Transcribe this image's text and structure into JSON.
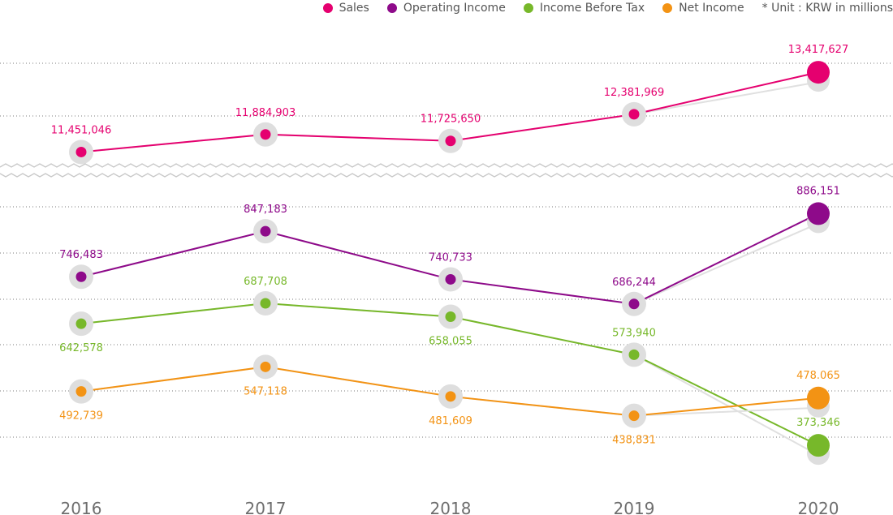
{
  "chart_data": {
    "type": "line",
    "unit_note": "* Unit : KRW in millions",
    "categories": [
      "2016",
      "2017",
      "2018",
      "2019",
      "2020"
    ],
    "axis_break": true,
    "grid": "dotted horizontal",
    "legend_position": "top-right",
    "series": [
      {
        "name": "Sales",
        "color": "#e5006f",
        "values": [
          11451046,
          11884903,
          11725650,
          12381969,
          13417627
        ],
        "labels": [
          "11,451,046",
          "11,884,903",
          "11,725,650",
          "12,381,969",
          "13,417,627"
        ]
      },
      {
        "name": "Operating Income",
        "color": "#8e0a8a",
        "values": [
          746483,
          847183,
          740733,
          686244,
          886151
        ],
        "labels": [
          "746,483",
          "847,183",
          "740,733",
          "686,244",
          "886,151"
        ]
      },
      {
        "name": "Income Before Tax",
        "color": "#77b82a",
        "values": [
          642578,
          687708,
          658055,
          573940,
          373346
        ],
        "labels": [
          "642,578",
          "687,708",
          "658,055",
          "573,940",
          "373,346"
        ]
      },
      {
        "name": "Net Income",
        "color": "#f39314",
        "values": [
          492739,
          547118,
          481609,
          438831,
          478065
        ],
        "labels": [
          "492,739",
          "547,118",
          "481,609",
          "438,831",
          "478.065"
        ]
      }
    ]
  }
}
